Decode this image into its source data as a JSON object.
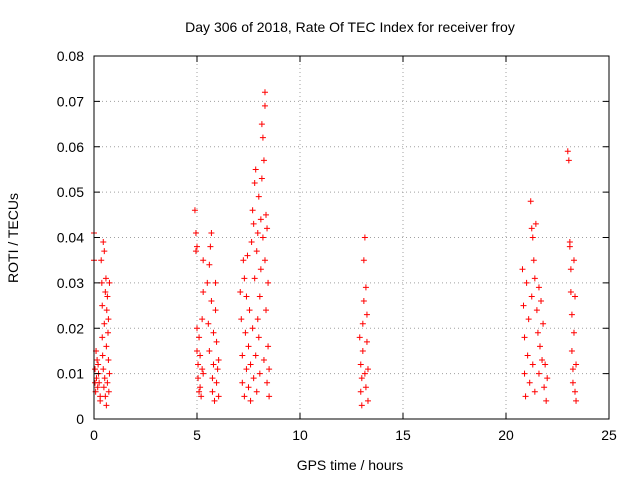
{
  "chart_data": {
    "type": "scatter",
    "title": "Day 306 of 2018, Rate Of TEC Index for receiver froy",
    "xlabel": "GPS time / hours",
    "ylabel": "ROTI / TECUs",
    "xlim": [
      0,
      25
    ],
    "ylim": [
      0,
      0.08
    ],
    "xticks": [
      0,
      5,
      10,
      15,
      20,
      25
    ],
    "xtick_labels": [
      "0",
      "5",
      "10",
      "15",
      "20",
      "25"
    ],
    "yticks": [
      0,
      0.01,
      0.02,
      0.03,
      0.04,
      0.05,
      0.06,
      0.07,
      0.08
    ],
    "ytick_labels": [
      "0",
      "0.01",
      "0.02",
      "0.03",
      "0.04",
      "0.05",
      "0.06",
      "0.07",
      "0.08"
    ],
    "grid": true,
    "marker": "plus",
    "color": "#ff0000",
    "series": [
      {
        "name": "ROTI",
        "points": [
          [
            0.0,
            0.041
          ],
          [
            0.0,
            0.035
          ],
          [
            0.05,
            0.011
          ],
          [
            0.05,
            0.008
          ],
          [
            0.08,
            0.006
          ],
          [
            0.1,
            0.015
          ],
          [
            0.12,
            0.009
          ],
          [
            0.15,
            0.013
          ],
          [
            0.18,
            0.007
          ],
          [
            0.2,
            0.012
          ],
          [
            0.22,
            0.01
          ],
          [
            0.25,
            0.008
          ],
          [
            0.3,
            0.005
          ],
          [
            0.3,
            0.004
          ],
          [
            0.35,
            0.035
          ],
          [
            0.38,
            0.03
          ],
          [
            0.4,
            0.025
          ],
          [
            0.4,
            0.018
          ],
          [
            0.42,
            0.014
          ],
          [
            0.45,
            0.039
          ],
          [
            0.45,
            0.011
          ],
          [
            0.48,
            0.007
          ],
          [
            0.5,
            0.037
          ],
          [
            0.5,
            0.021
          ],
          [
            0.52,
            0.009
          ],
          [
            0.55,
            0.028
          ],
          [
            0.55,
            0.005
          ],
          [
            0.58,
            0.031
          ],
          [
            0.6,
            0.016
          ],
          [
            0.6,
            0.003
          ],
          [
            0.62,
            0.024
          ],
          [
            0.65,
            0.027
          ],
          [
            0.65,
            0.008
          ],
          [
            0.68,
            0.019
          ],
          [
            0.7,
            0.022
          ],
          [
            0.7,
            0.013
          ],
          [
            0.72,
            0.006
          ],
          [
            0.75,
            0.03
          ],
          [
            0.75,
            0.01
          ],
          [
            4.9,
            0.046
          ],
          [
            4.95,
            0.041
          ],
          [
            4.95,
            0.037
          ],
          [
            5.0,
            0.038
          ],
          [
            5.0,
            0.02
          ],
          [
            5.0,
            0.015
          ],
          [
            5.05,
            0.012
          ],
          [
            5.05,
            0.009
          ],
          [
            5.1,
            0.006
          ],
          [
            5.1,
            0.018
          ],
          [
            5.15,
            0.014
          ],
          [
            5.15,
            0.007
          ],
          [
            5.2,
            0.005
          ],
          [
            5.25,
            0.011
          ],
          [
            5.25,
            0.022
          ],
          [
            5.3,
            0.028
          ],
          [
            5.3,
            0.035
          ],
          [
            5.3,
            0.01
          ],
          [
            5.5,
            0.03
          ],
          [
            5.55,
            0.021
          ],
          [
            5.6,
            0.034
          ],
          [
            5.6,
            0.015
          ],
          [
            5.65,
            0.038
          ],
          [
            5.7,
            0.041
          ],
          [
            5.7,
            0.026
          ],
          [
            5.75,
            0.009
          ],
          [
            5.75,
            0.006
          ],
          [
            5.8,
            0.019
          ],
          [
            5.8,
            0.012
          ],
          [
            5.85,
            0.004
          ],
          [
            5.9,
            0.03
          ],
          [
            5.9,
            0.024
          ],
          [
            5.95,
            0.017
          ],
          [
            5.95,
            0.008
          ],
          [
            6.0,
            0.011
          ],
          [
            6.05,
            0.013
          ],
          [
            6.05,
            0.005
          ],
          [
            7.1,
            0.028
          ],
          [
            7.15,
            0.022
          ],
          [
            7.2,
            0.014
          ],
          [
            7.2,
            0.008
          ],
          [
            7.25,
            0.035
          ],
          [
            7.3,
            0.031
          ],
          [
            7.3,
            0.005
          ],
          [
            7.35,
            0.019
          ],
          [
            7.4,
            0.011
          ],
          [
            7.4,
            0.027
          ],
          [
            7.45,
            0.036
          ],
          [
            7.5,
            0.016
          ],
          [
            7.5,
            0.007
          ],
          [
            7.55,
            0.024
          ],
          [
            7.6,
            0.012
          ],
          [
            7.6,
            0.004
          ],
          [
            7.65,
            0.039
          ],
          [
            7.7,
            0.046
          ],
          [
            7.7,
            0.02
          ],
          [
            7.75,
            0.043
          ],
          [
            7.75,
            0.009
          ],
          [
            7.8,
            0.052
          ],
          [
            7.8,
            0.031
          ],
          [
            7.85,
            0.055
          ],
          [
            7.85,
            0.014
          ],
          [
            7.9,
            0.037
          ],
          [
            7.9,
            0.006
          ],
          [
            7.95,
            0.041
          ],
          [
            7.95,
            0.022
          ],
          [
            8.0,
            0.049
          ],
          [
            8.0,
            0.018
          ],
          [
            8.05,
            0.027
          ],
          [
            8.05,
            0.01
          ],
          [
            8.1,
            0.044
          ],
          [
            8.1,
            0.033
          ],
          [
            8.15,
            0.065
          ],
          [
            8.15,
            0.053
          ],
          [
            8.2,
            0.062
          ],
          [
            8.2,
            0.04
          ],
          [
            8.25,
            0.057
          ],
          [
            8.25,
            0.013
          ],
          [
            8.3,
            0.072
          ],
          [
            8.3,
            0.069
          ],
          [
            8.3,
            0.035
          ],
          [
            8.35,
            0.045
          ],
          [
            8.35,
            0.024
          ],
          [
            8.4,
            0.042
          ],
          [
            8.4,
            0.008
          ],
          [
            8.45,
            0.03
          ],
          [
            8.45,
            0.016
          ],
          [
            8.5,
            0.011
          ],
          [
            8.5,
            0.005
          ],
          [
            12.9,
            0.018
          ],
          [
            12.95,
            0.012
          ],
          [
            12.95,
            0.006
          ],
          [
            13.0,
            0.009
          ],
          [
            13.0,
            0.003
          ],
          [
            13.05,
            0.021
          ],
          [
            13.05,
            0.015
          ],
          [
            13.1,
            0.035
          ],
          [
            13.1,
            0.026
          ],
          [
            13.15,
            0.04
          ],
          [
            13.15,
            0.01
          ],
          [
            13.2,
            0.029
          ],
          [
            13.2,
            0.007
          ],
          [
            13.25,
            0.023
          ],
          [
            13.25,
            0.017
          ],
          [
            13.3,
            0.011
          ],
          [
            13.3,
            0.004
          ],
          [
            20.8,
            0.033
          ],
          [
            20.85,
            0.025
          ],
          [
            20.9,
            0.018
          ],
          [
            20.9,
            0.01
          ],
          [
            20.95,
            0.005
          ],
          [
            21.0,
            0.03
          ],
          [
            21.05,
            0.014
          ],
          [
            21.1,
            0.022
          ],
          [
            21.15,
            0.008
          ],
          [
            21.2,
            0.048
          ],
          [
            21.25,
            0.042
          ],
          [
            21.25,
            0.027
          ],
          [
            21.3,
            0.04
          ],
          [
            21.3,
            0.012
          ],
          [
            21.35,
            0.035
          ],
          [
            21.4,
            0.031
          ],
          [
            21.4,
            0.006
          ],
          [
            21.45,
            0.043
          ],
          [
            21.5,
            0.024
          ],
          [
            21.55,
            0.019
          ],
          [
            21.6,
            0.029
          ],
          [
            21.6,
            0.01
          ],
          [
            21.65,
            0.016
          ],
          [
            21.7,
            0.026
          ],
          [
            21.75,
            0.013
          ],
          [
            21.8,
            0.021
          ],
          [
            21.85,
            0.007
          ],
          [
            21.9,
            0.012
          ],
          [
            21.95,
            0.004
          ],
          [
            22.0,
            0.009
          ],
          [
            23.0,
            0.059
          ],
          [
            23.05,
            0.057
          ],
          [
            23.1,
            0.039
          ],
          [
            23.1,
            0.038
          ],
          [
            23.15,
            0.033
          ],
          [
            23.15,
            0.028
          ],
          [
            23.2,
            0.023
          ],
          [
            23.2,
            0.015
          ],
          [
            23.25,
            0.011
          ],
          [
            23.25,
            0.008
          ],
          [
            23.3,
            0.035
          ],
          [
            23.3,
            0.019
          ],
          [
            23.35,
            0.027
          ],
          [
            23.35,
            0.006
          ],
          [
            23.4,
            0.012
          ],
          [
            23.4,
            0.004
          ]
        ]
      }
    ]
  }
}
